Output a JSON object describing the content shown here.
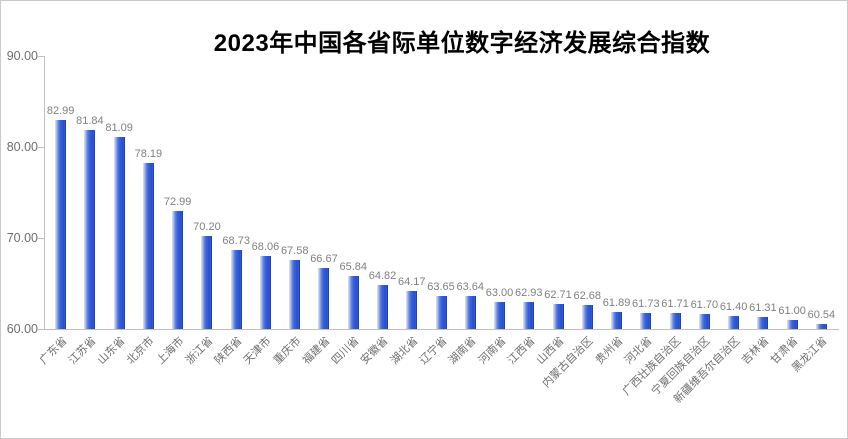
{
  "chart_data": {
    "type": "bar",
    "title": "2023年中国各省际单位数字经济发展综合指数",
    "categories": [
      "广东省",
      "江苏省",
      "山东省",
      "北京市",
      "上海市",
      "浙江省",
      "陕西省",
      "天津市",
      "重庆市",
      "福建省",
      "四川省",
      "安徽省",
      "湖北省",
      "辽宁省",
      "湖南省",
      "河南省",
      "江西省",
      "山西省",
      "内蒙古自治区",
      "贵州省",
      "河北省",
      "广西壮族自治区",
      "宁夏回族自治区",
      "新疆维吾尔自治区",
      "吉林省",
      "甘肃省",
      "黑龙江省"
    ],
    "values": [
      82.99,
      81.84,
      81.09,
      78.19,
      72.99,
      70.2,
      68.73,
      68.06,
      67.58,
      66.67,
      65.84,
      64.82,
      64.17,
      63.65,
      63.64,
      63.0,
      62.93,
      62.71,
      62.68,
      61.89,
      61.73,
      61.71,
      61.7,
      61.4,
      61.31,
      61.0,
      60.54
    ],
    "value_labels": [
      "82.99",
      "81.84",
      "81.09",
      "78.19",
      "72.99",
      "70.20",
      "68.73",
      "68.06",
      "67.58",
      "66.67",
      "65.84",
      "64.82",
      "64.17",
      "63.65",
      "63.64",
      "63.00",
      "62.93",
      "62.71",
      "62.68",
      "61.89",
      "61.73",
      "61.71",
      "61.70",
      "61.40",
      "61.31",
      "61.00",
      "60.54"
    ],
    "xlabel": "",
    "ylabel": "",
    "ylim": [
      60,
      90
    ],
    "ytick_values": [
      90,
      80,
      70,
      60
    ],
    "ytick_labels": [
      "90.00",
      "80.00",
      "70.00",
      "60.00"
    ],
    "grid": false,
    "legend": "none",
    "colors": {
      "bar_light_edge": "#dfe7f9",
      "bar_mid_light": "#9db4ee",
      "bar_main": "#3a64de",
      "bar_dark": "#2a4ec2",
      "bar_border": "#2243a4",
      "value_label": "#7f7f7f",
      "axis_label": "#6e6e6e",
      "axis_line": "#bfbfbf",
      "title": "#000000",
      "chart_border": "#c9c9c9"
    }
  }
}
